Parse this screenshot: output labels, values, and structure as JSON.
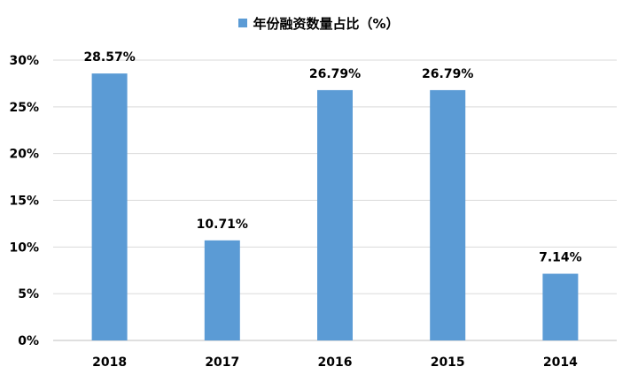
{
  "chart_data": {
    "type": "bar",
    "categories": [
      "2018",
      "2017",
      "2016",
      "2015",
      "2014"
    ],
    "series": [
      {
        "name": "年份融资数量占比（%）",
        "values": [
          28.57,
          10.71,
          26.79,
          26.79,
          7.14
        ]
      }
    ],
    "data_labels": [
      "28.57%",
      "10.71%",
      "26.79%",
      "26.79%",
      "7.14%"
    ],
    "y_ticks": [
      "0%",
      "5%",
      "10%",
      "15%",
      "20%",
      "25%",
      "30%"
    ],
    "ylim": [
      0,
      30
    ],
    "grid": true,
    "legend_position": "top-center",
    "title": "",
    "xlabel": "",
    "ylabel": "",
    "bar_color": "#5B9BD5",
    "grid_color": "#D9D9D9"
  }
}
